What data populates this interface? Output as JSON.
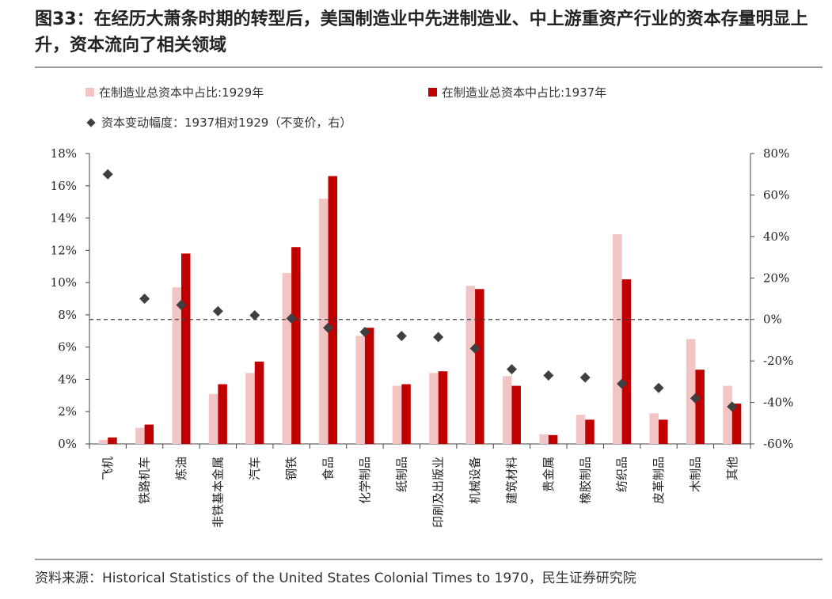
{
  "title": "图33：在经历大萧条时期的转型后，美国制造业中先进制造业、中上游重资产行业的资本存量明显上升，资本流向了相关领域",
  "colors": {
    "bar1929": "#f2c4c4",
    "bar1937": "#c00000",
    "marker": "#404040",
    "zero_line": "#404040"
  },
  "chart_data": {
    "type": "bar",
    "categories": [
      "飞机",
      "铁路机车",
      "炼油",
      "非铁基本金属",
      "汽车",
      "钢铁",
      "食品",
      "化学制品",
      "纸制品",
      "印刷及出版业",
      "机械设备",
      "建筑材料",
      "贵金属",
      "橡胶制品",
      "纺织品",
      "皮革制品",
      "木制品",
      "其他"
    ],
    "series": [
      {
        "name": "在制造业总资本中占比:1929年",
        "axis": "left",
        "type": "bar",
        "values": [
          0.25,
          1.0,
          9.7,
          3.1,
          4.4,
          10.6,
          15.2,
          6.7,
          3.6,
          4.4,
          9.8,
          4.2,
          0.6,
          1.8,
          13.0,
          1.9,
          6.5,
          3.6
        ]
      },
      {
        "name": "在制造业总资本中占比:1937年",
        "axis": "left",
        "type": "bar",
        "values": [
          0.4,
          1.2,
          11.8,
          3.7,
          5.1,
          12.2,
          16.6,
          7.2,
          3.7,
          4.5,
          9.6,
          3.6,
          0.55,
          1.5,
          10.2,
          1.5,
          4.6,
          2.5
        ]
      },
      {
        "name": "资本变动幅度：1937相对1929（不变价，右）",
        "axis": "right",
        "type": "scatter",
        "values": [
          70,
          10,
          7,
          4,
          2,
          0.5,
          -4,
          -6,
          -8,
          -8.5,
          -14,
          -24,
          -27,
          -28,
          -31,
          -33,
          -38,
          -42
        ]
      }
    ],
    "left_axis": {
      "min": 0,
      "max": 18,
      "step": 2,
      "tick_labels": [
        "0%",
        "2%",
        "4%",
        "6%",
        "8%",
        "10%",
        "12%",
        "14%",
        "16%",
        "18%"
      ]
    },
    "right_axis": {
      "min": -60,
      "max": 80,
      "step": 20,
      "tick_labels": [
        "-60%",
        "-40%",
        "-20%",
        "0%",
        "20%",
        "40%",
        "60%",
        "80%"
      ]
    },
    "reference_line": {
      "axis": "right",
      "value": 0,
      "style": "dashed"
    },
    "legend_placement": "top"
  },
  "source": "资料来源：Historical Statistics of the United States Colonial Times to 1970，民生证券研究院"
}
